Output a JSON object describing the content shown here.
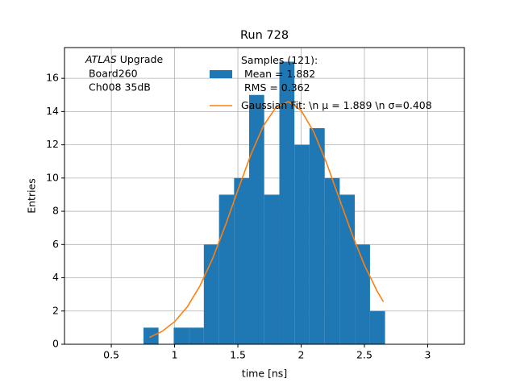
{
  "chart_data": {
    "type": "histogram",
    "title": "Run 728",
    "xlabel": "time [ns]",
    "ylabel": "Entries",
    "annotation": {
      "italic": "ATLAS",
      "lines": [
        " Upgrade",
        " Board260",
        " Ch008 35dB"
      ]
    },
    "xlim": [
      0.13,
      3.29
    ],
    "ylim": [
      0,
      17.85
    ],
    "xticks": [
      0.5,
      1.0,
      1.5,
      2.0,
      2.5,
      3.0
    ],
    "yticks": [
      0,
      2,
      4,
      6,
      8,
      10,
      12,
      14,
      16
    ],
    "grid": true,
    "legend": "upper center",
    "series": [
      {
        "type": "histogram",
        "name": "Samples (121):\n Mean = 1.882\n RMS = 0.362",
        "color": "#1f77b4",
        "bins": [
          0.754,
          0.873,
          0.993,
          1.112,
          1.231,
          1.351,
          1.47,
          1.589,
          1.708,
          1.828,
          1.947,
          2.066,
          2.186,
          2.305,
          2.424,
          2.544,
          2.663
        ],
        "counts": [
          1,
          0,
          1,
          1,
          6,
          9,
          10,
          15,
          9,
          17,
          12,
          13,
          10,
          9,
          6,
          2
        ]
      },
      {
        "type": "line",
        "name": "Gaussian Fit: \\n μ = 1.889 \\n σ=0.408",
        "color": "#ff7f0e",
        "x": [
          0.8,
          0.9,
          1.0,
          1.1,
          1.2,
          1.3,
          1.4,
          1.5,
          1.6,
          1.7,
          1.8,
          1.9,
          2.0,
          2.1,
          2.2,
          2.3,
          2.4,
          2.5,
          2.6,
          2.65
        ],
        "values": [
          0.41,
          0.77,
          1.36,
          2.25,
          3.51,
          5.15,
          7.12,
          9.27,
          11.36,
          13.12,
          14.25,
          14.6,
          14.07,
          12.77,
          10.92,
          8.79,
          6.67,
          4.76,
          3.2,
          2.56
        ]
      }
    ]
  }
}
